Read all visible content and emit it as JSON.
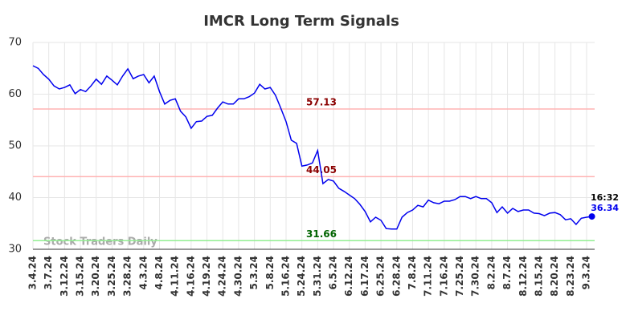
{
  "chart_data": {
    "type": "line",
    "title": "IMCR Long Term Signals",
    "categories": [
      "3.4.24",
      null,
      null,
      "3.7.24",
      null,
      null,
      "3.12.24",
      null,
      null,
      "3.15.24",
      null,
      null,
      "3.20.24",
      null,
      null,
      "3.25.24",
      null,
      null,
      "3.28.24",
      null,
      null,
      "4.3.24",
      null,
      null,
      "4.8.24",
      null,
      null,
      "4.11.24",
      null,
      null,
      "4.16.24",
      null,
      null,
      "4.19.24",
      null,
      null,
      "4.24.24",
      null,
      null,
      "4.30.24",
      null,
      null,
      "5.3.24",
      null,
      null,
      "5.8.24",
      null,
      null,
      "5.16.24",
      null,
      null,
      "5.24.24",
      null,
      null,
      "5.31.24",
      null,
      null,
      "6.5.24",
      null,
      null,
      "6.12.24",
      null,
      null,
      "6.17.24",
      null,
      null,
      "6.25.24",
      null,
      null,
      "6.28.24",
      null,
      null,
      "7.8.24",
      null,
      null,
      "7.11.24",
      null,
      null,
      "7.16.24",
      null,
      null,
      "7.25.24",
      null,
      null,
      "7.30.24",
      null,
      null,
      "8.2.24",
      null,
      null,
      "8.7.24",
      null,
      null,
      "8.12.24",
      null,
      null,
      "8.15.24",
      null,
      null,
      "8.20.24",
      null,
      null,
      "8.23.24",
      null,
      null,
      "9.3.24",
      null
    ],
    "series": [
      {
        "color": "#0000ee",
        "values": [
          65.5,
          65.0,
          63.8,
          62.9,
          61.6,
          61.0,
          61.3,
          61.8,
          60.1,
          60.9,
          60.5,
          61.6,
          62.9,
          61.9,
          63.5,
          62.7,
          61.8,
          63.5,
          64.9,
          63.0,
          63.5,
          63.8,
          62.2,
          63.5,
          60.5,
          58.1,
          58.8,
          59.1,
          56.7,
          55.6,
          53.4,
          54.7,
          54.8,
          55.7,
          55.9,
          57.3,
          58.5,
          58.1,
          58.1,
          59.1,
          59.1,
          59.5,
          60.2,
          61.9,
          61.0,
          61.3,
          59.8,
          57.3,
          54.7,
          51.1,
          50.5,
          46.1,
          46.3,
          46.7,
          49.1,
          42.7,
          43.5,
          43.2,
          41.8,
          41.2,
          40.5,
          39.8,
          38.7,
          37.3,
          35.3,
          36.2,
          35.6,
          34.0,
          33.9,
          33.9,
          36.2,
          37.1,
          37.6,
          38.5,
          38.2,
          39.5,
          39.0,
          38.8,
          39.3,
          39.3,
          39.6,
          40.2,
          40.2,
          39.8,
          40.2,
          39.8,
          39.8,
          39.0,
          37.1,
          38.2,
          37.0,
          37.9,
          37.3,
          37.6,
          37.6,
          37.0,
          36.9,
          36.5,
          37.0,
          37.1,
          36.7,
          35.7,
          35.9,
          34.8,
          36.0,
          36.2,
          36.34
        ]
      }
    ],
    "ylim": [
      30,
      70
    ],
    "yticks": [
      30,
      40,
      50,
      60,
      70
    ],
    "grid": true,
    "hlines": [
      {
        "value": 57.13,
        "color": "#ffb3b3",
        "label_color": "#8b0000"
      },
      {
        "value": 44.05,
        "color": "#ffb3b3",
        "label_color": "#8b0000"
      },
      {
        "value": 31.66,
        "color": "#90ee90",
        "label_color": "#006400"
      }
    ],
    "last_time": "16:32",
    "watermark": "Stock Traders Daily"
  }
}
